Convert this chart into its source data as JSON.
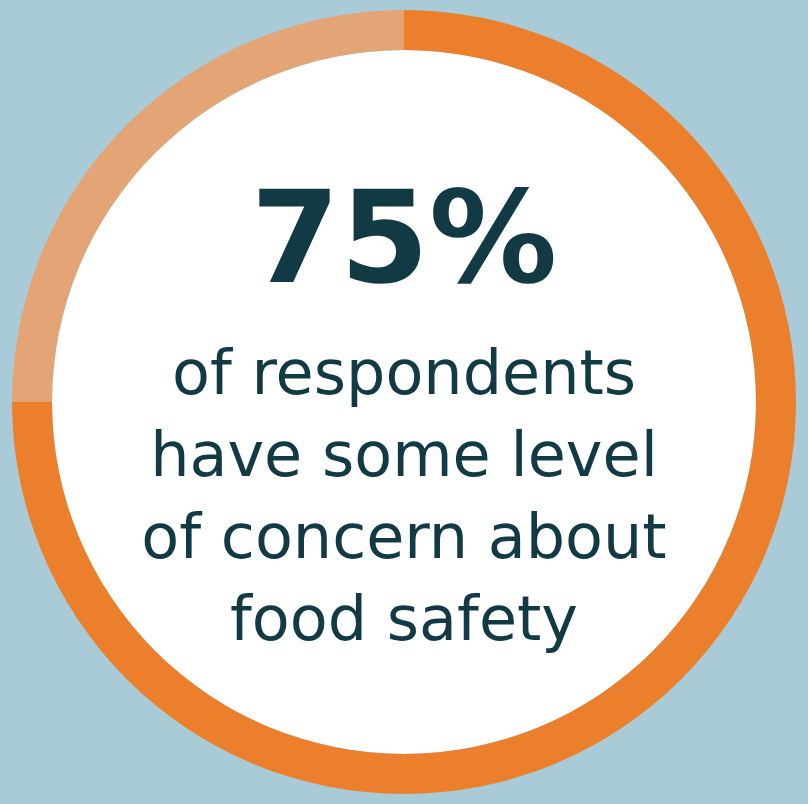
{
  "chart_data": {
    "type": "donut",
    "title": "75%",
    "subtitle": "of respondents have some level of concern about food safety",
    "categories": [
      null,
      null
    ],
    "values": [
      75,
      25
    ],
    "colors": [
      "#ec7f2b",
      "#e3a575"
    ]
  }
}
